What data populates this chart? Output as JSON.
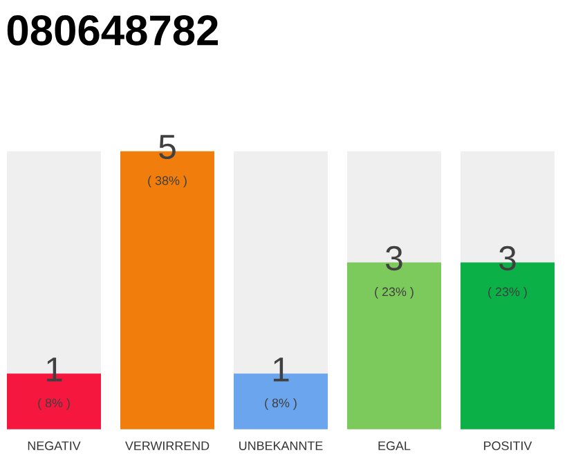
{
  "chart_data": {
    "type": "bar",
    "title": "080648782",
    "categories": [
      "NEGATIV",
      "VERWIRREND",
      "UNBEKANNTE",
      "EGAL",
      "POSITIV"
    ],
    "values": [
      1,
      5,
      1,
      3,
      3
    ],
    "colors": [
      "#f5173d",
      "#f07d0c",
      "#6aa5ee",
      "#7dca5c",
      "#0bb146"
    ],
    "data_labels": true,
    "annotations": [
      {
        "text": "( 8% )",
        "x": "NEGATIV",
        "y": 1
      },
      {
        "text": "( 38% )",
        "x": "VERWIRREND",
        "y": 5
      },
      {
        "text": "( 8% )",
        "x": "UNBEKANNTE",
        "y": 1
      },
      {
        "text": "( 23% )",
        "x": "EGAL",
        "y": 3
      },
      {
        "text": "( 23% )",
        "x": "POSITIV",
        "y": 3
      }
    ]
  }
}
